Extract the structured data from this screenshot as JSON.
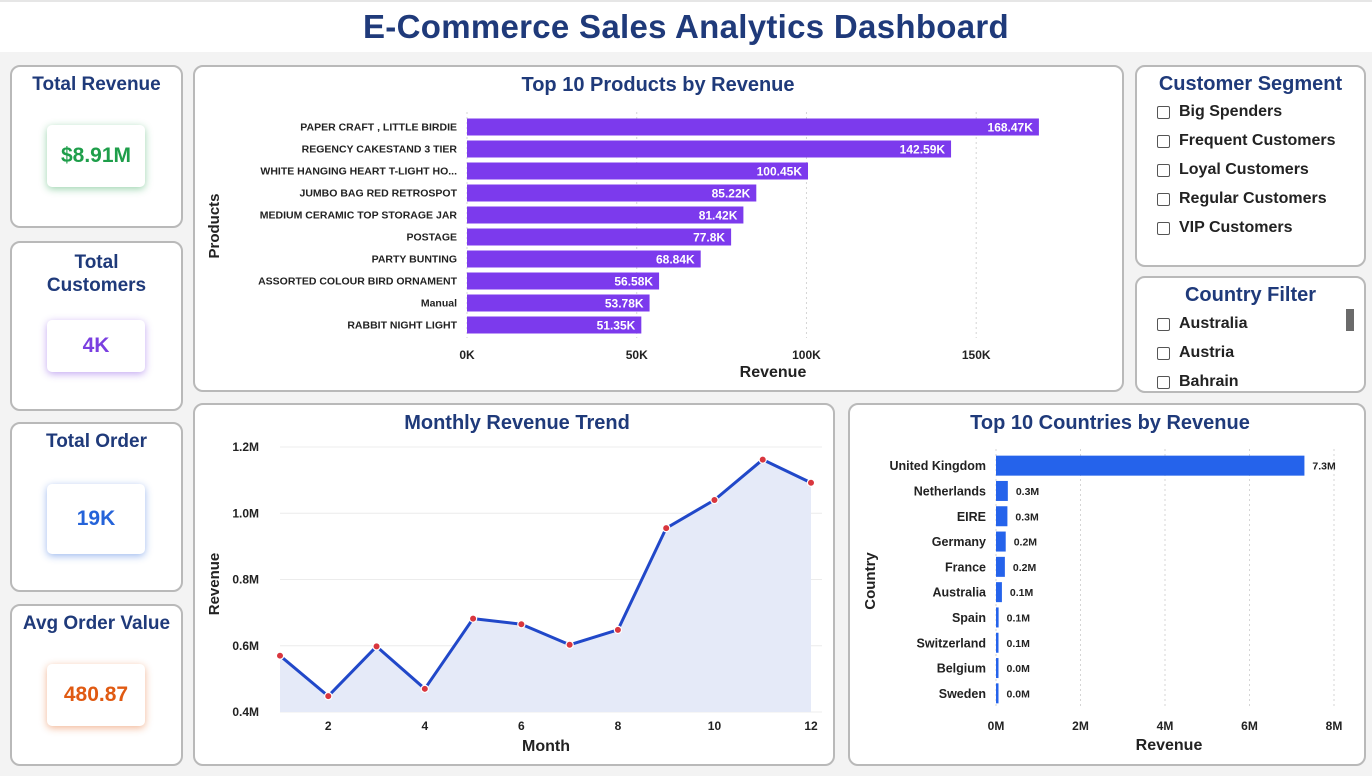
{
  "header": {
    "title": "E-Commerce Sales Analytics Dashboard"
  },
  "kpis": {
    "revenue": {
      "title": "Total Revenue",
      "value": "$8.91M",
      "color": "#1e9e4a"
    },
    "customers": {
      "title_line1": "Total",
      "title_line2": "Customers",
      "value": "4K",
      "color": "#7a3fe0"
    },
    "orders": {
      "title": "Total Order",
      "value": "19K",
      "color": "#2563d9"
    },
    "aov": {
      "title": "Avg Order Value",
      "value": "480.87",
      "color": "#e05a12"
    }
  },
  "customer_segment": {
    "title": "Customer Segment",
    "options": [
      "Big Spenders",
      "Frequent Customers",
      "Loyal Customers",
      "Regular Customers",
      "VIP Customers"
    ]
  },
  "country_filter": {
    "title": "Country Filter",
    "options": [
      "Australia",
      "Austria",
      "Bahrain"
    ]
  },
  "colors": {
    "products_bar": "#7c3aed",
    "countries_bar": "#2563eb",
    "line": "#2148c9",
    "area": "#e5eaf8",
    "marker": "#d9363e",
    "title": "#1f3a7a"
  },
  "chart_data": [
    {
      "type": "bar",
      "orientation": "horizontal",
      "title": "Top 10 Products by Revenue",
      "xlabel": "Revenue",
      "ylabel": "Products",
      "categories": [
        "PAPER CRAFT , LITTLE BIRDIE",
        "REGENCY CAKESTAND 3 TIER",
        "WHITE HANGING HEART T-LIGHT HO...",
        "JUMBO BAG RED RETROSPOT",
        "MEDIUM CERAMIC TOP STORAGE JAR",
        "POSTAGE",
        "PARTY BUNTING",
        "ASSORTED COLOUR BIRD ORNAMENT",
        "Manual",
        "RABBIT NIGHT LIGHT"
      ],
      "values": [
        168470,
        142590,
        100450,
        85220,
        81420,
        77800,
        68840,
        56580,
        53780,
        51350
      ],
      "labels": [
        "168.47K",
        "142.59K",
        "100.45K",
        "85.22K",
        "81.42K",
        "77.8K",
        "68.84K",
        "56.58K",
        "53.78K",
        "51.35K"
      ],
      "xticks": [
        0,
        50000,
        100000,
        150000
      ],
      "xtick_labels": [
        "0K",
        "50K",
        "100K",
        "150K"
      ],
      "xlim": [
        0,
        190000
      ],
      "grid": true
    },
    {
      "type": "line",
      "title": "Monthly Revenue Trend",
      "xlabel": "Month",
      "ylabel": "Revenue",
      "x": [
        1,
        2,
        3,
        4,
        5,
        6,
        7,
        8,
        9,
        10,
        11,
        12
      ],
      "values": [
        570000,
        448000,
        598000,
        470000,
        682000,
        665000,
        603000,
        648000,
        955000,
        1040000,
        1162000,
        1092000
      ],
      "xticks": [
        2,
        4,
        6,
        8,
        10,
        12
      ],
      "yticks": [
        400000,
        600000,
        800000,
        1000000,
        1200000
      ],
      "ytick_labels": [
        "0.4M",
        "0.6M",
        "0.8M",
        "1.0M",
        "1.2M"
      ],
      "ylim": [
        400000,
        1200000
      ],
      "grid": true
    },
    {
      "type": "bar",
      "orientation": "horizontal",
      "title": "Top 10 Countries by Revenue",
      "xlabel": "Revenue",
      "ylabel": "Country",
      "categories": [
        "United Kingdom",
        "Netherlands",
        "EIRE",
        "Germany",
        "France",
        "Australia",
        "Spain",
        "Switzerland",
        "Belgium",
        "Sweden"
      ],
      "values": [
        7300000,
        280000,
        270000,
        230000,
        210000,
        140000,
        62000,
        56000,
        41000,
        38000
      ],
      "labels": [
        "7.3M",
        "0.3M",
        "0.3M",
        "0.2M",
        "0.2M",
        "0.1M",
        "0.1M",
        "0.1M",
        "0.0M",
        "0.0M"
      ],
      "xticks": [
        0,
        2000000,
        4000000,
        6000000,
        8000000
      ],
      "xtick_labels": [
        "0M",
        "2M",
        "4M",
        "6M",
        "8M"
      ],
      "xlim": [
        0,
        8000000
      ],
      "grid": true
    }
  ]
}
